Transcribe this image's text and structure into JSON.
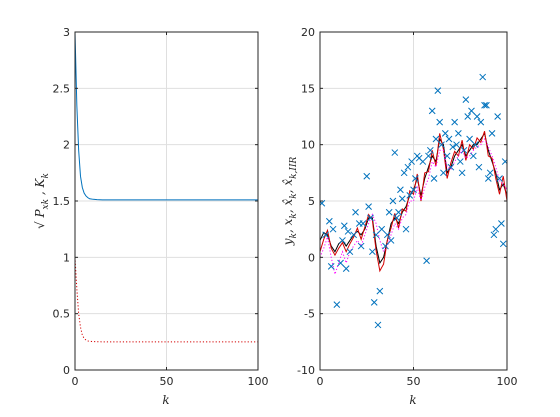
{
  "colors": {
    "blue": "#0072BD",
    "red": "#D40000",
    "black": "#000000",
    "magenta": "#FF00FF",
    "grid": "#DFDFDF",
    "axis": "#262626"
  },
  "chart_data": [
    {
      "type": "line",
      "xlabel": "k",
      "ylabel": "√ P_xk , K_k",
      "xlim": [
        0,
        100
      ],
      "ylim": [
        0,
        3
      ],
      "xticks": [
        "0",
        "50",
        "100"
      ],
      "yticks": [
        "0",
        "0.5",
        "1",
        "1.5",
        "2",
        "2.5",
        "3"
      ],
      "grid": true,
      "series": [
        {
          "color": "#0072BD",
          "style": "solid",
          "x": [
            0,
            1,
            2,
            3,
            4,
            5,
            6,
            7,
            8,
            10,
            12,
            15,
            20,
            30,
            50,
            100
          ],
          "values": [
            3.0,
            2.35,
            1.95,
            1.72,
            1.62,
            1.57,
            1.545,
            1.53,
            1.52,
            1.515,
            1.512,
            1.51,
            1.51,
            1.51,
            1.51,
            1.51
          ]
        },
        {
          "color": "#D40000",
          "style": "dotted",
          "x": [
            0,
            1,
            2,
            3,
            4,
            5,
            6,
            7,
            8,
            10,
            12,
            15,
            20,
            30,
            50,
            100
          ],
          "values": [
            1.0,
            0.72,
            0.5,
            0.38,
            0.31,
            0.28,
            0.265,
            0.258,
            0.255,
            0.252,
            0.251,
            0.25,
            0.25,
            0.25,
            0.25,
            0.25
          ]
        }
      ]
    },
    {
      "type": "line",
      "xlabel": "k",
      "ylabel": "y_k , x_k , x̂_k , x̂_k,IIR",
      "xlim": [
        0,
        100
      ],
      "ylim": [
        -10,
        20
      ],
      "xticks": [
        "0",
        "50",
        "100"
      ],
      "yticks": [
        "-10",
        "-5",
        "0",
        "5",
        "10",
        "15",
        "20"
      ],
      "grid": true,
      "series": [
        {
          "color": "#000000",
          "style": "solid",
          "x": [
            0,
            2,
            4,
            6,
            8,
            10,
            12,
            14,
            16,
            18,
            20,
            22,
            24,
            26,
            28,
            30,
            32,
            34,
            36,
            38,
            40,
            42,
            44,
            46,
            48,
            50,
            52,
            54,
            56,
            58,
            60,
            62,
            64,
            66,
            68,
            70,
            72,
            74,
            76,
            78,
            80,
            82,
            84,
            86,
            88,
            90,
            92,
            94,
            96,
            98,
            100
          ],
          "values": [
            1.5,
            2.2,
            2.0,
            1.0,
            0.5,
            1.2,
            1.5,
            1.0,
            1.5,
            2.0,
            2.3,
            2.0,
            2.5,
            3.5,
            3.5,
            1.0,
            -0.5,
            0.0,
            1.5,
            3.0,
            3.5,
            3.0,
            4.0,
            4.5,
            5.5,
            6.0,
            7.0,
            5.5,
            7.0,
            8.0,
            9.0,
            8.5,
            10.5,
            10.0,
            7.5,
            8.0,
            9.0,
            9.5,
            10.0,
            9.0,
            9.5,
            10.0,
            10.0,
            10.5,
            11.0,
            9.5,
            8.5,
            7.5,
            6.0,
            6.5,
            5.5
          ]
        },
        {
          "color": "#D40000",
          "style": "solid",
          "x": [
            0,
            2,
            4,
            6,
            8,
            10,
            12,
            14,
            16,
            18,
            20,
            22,
            24,
            26,
            28,
            30,
            32,
            34,
            36,
            38,
            40,
            42,
            44,
            46,
            48,
            50,
            52,
            54,
            56,
            58,
            60,
            62,
            64,
            66,
            68,
            70,
            72,
            74,
            76,
            78,
            80,
            82,
            84,
            86,
            88,
            90,
            92,
            94,
            96,
            98,
            100
          ],
          "values": [
            0.5,
            1.6,
            2.4,
            0.8,
            0.2,
            0.8,
            1.3,
            0.5,
            1.2,
            1.8,
            2.6,
            1.6,
            2.7,
            3.8,
            3.3,
            0.6,
            -1.2,
            -0.6,
            1.5,
            2.6,
            3.9,
            2.6,
            4.3,
            4.1,
            5.9,
            5.6,
            7.4,
            5.0,
            7.5,
            7.6,
            9.5,
            8.1,
            11.0,
            9.6,
            7.0,
            8.4,
            9.4,
            9.0,
            10.4,
            8.6,
            10.0,
            9.6,
            10.6,
            10.2,
            11.2,
            9.0,
            8.8,
            7.0,
            5.6,
            7.2,
            5.0
          ]
        },
        {
          "color": "#FF00FF",
          "style": "dotted",
          "x": [
            0,
            2,
            4,
            6,
            8,
            10,
            12,
            14,
            16,
            18,
            20,
            22,
            24,
            26,
            28,
            30,
            32,
            34,
            36,
            38,
            40,
            42,
            44,
            46,
            48,
            50,
            52,
            54,
            56,
            58,
            60,
            62,
            64,
            66,
            68,
            70,
            72,
            74,
            76,
            78,
            80,
            82,
            84,
            86,
            88,
            90,
            92,
            94,
            96,
            98,
            100
          ],
          "values": [
            0.0,
            0.8,
            1.8,
            0.0,
            -1.5,
            -0.5,
            0.5,
            -0.5,
            0.5,
            1.0,
            1.5,
            1.0,
            2.0,
            3.0,
            3.8,
            3.0,
            1.5,
            0.5,
            1.0,
            2.0,
            3.0,
            2.5,
            3.5,
            3.8,
            5.0,
            5.0,
            6.2,
            5.0,
            6.2,
            7.0,
            8.5,
            8.0,
            9.5,
            9.5,
            8.0,
            7.8,
            8.5,
            9.0,
            9.5,
            8.8,
            9.0,
            9.5,
            9.8,
            10.0,
            10.5,
            9.8,
            9.0,
            8.0,
            6.8,
            6.5,
            6.0
          ]
        },
        {
          "color": "#0072BD",
          "style": "marker-x",
          "x": [
            1,
            3,
            5,
            6,
            7,
            9,
            11,
            12,
            13,
            14,
            15,
            16,
            18,
            19,
            21,
            22,
            23,
            25,
            26,
            27,
            28,
            29,
            30,
            31,
            32,
            33,
            35,
            36,
            37,
            38,
            39,
            40,
            41,
            42,
            43,
            44,
            45,
            46,
            47,
            48,
            49,
            50,
            51,
            52,
            53,
            55,
            57,
            58,
            59,
            60,
            61,
            62,
            63,
            64,
            65,
            66,
            67,
            68,
            69,
            70,
            71,
            72,
            73,
            74,
            75,
            76,
            77,
            78,
            79,
            80,
            81,
            82,
            83,
            84,
            85,
            86,
            87,
            88,
            89,
            90,
            91,
            92,
            93,
            94,
            95,
            96,
            97,
            98,
            99
          ],
          "values": [
            4.8,
            2.0,
            3.2,
            -0.8,
            2.5,
            -4.2,
            -0.5,
            1.5,
            2.8,
            -1.0,
            2.3,
            0.5,
            2.0,
            4.0,
            3.0,
            1.0,
            3.0,
            7.2,
            4.5,
            3.5,
            0.5,
            -4.0,
            2.0,
            -6.0,
            -3.0,
            2.5,
            1.0,
            2.0,
            4.0,
            1.5,
            5.0,
            9.3,
            3.5,
            4.0,
            6.0,
            5.2,
            7.5,
            2.5,
            8.0,
            5.5,
            8.5,
            6.0,
            7.0,
            9.0,
            8.8,
            8.5,
            -0.3,
            9.0,
            9.5,
            13.0,
            7.0,
            10.5,
            14.8,
            12.0,
            10.0,
            7.5,
            11.0,
            9.0,
            10.5,
            8.0,
            9.8,
            12.0,
            10.0,
            11.0,
            8.5,
            7.5,
            9.5,
            14.0,
            12.5,
            10.5,
            13.0,
            9.0,
            10.0,
            12.5,
            8.0,
            12.0,
            16.0,
            13.5,
            13.5,
            7.0,
            7.5,
            11.0,
            2.0,
            2.5,
            12.5,
            7.0,
            3.0,
            1.2,
            8.5
          ]
        }
      ]
    }
  ]
}
